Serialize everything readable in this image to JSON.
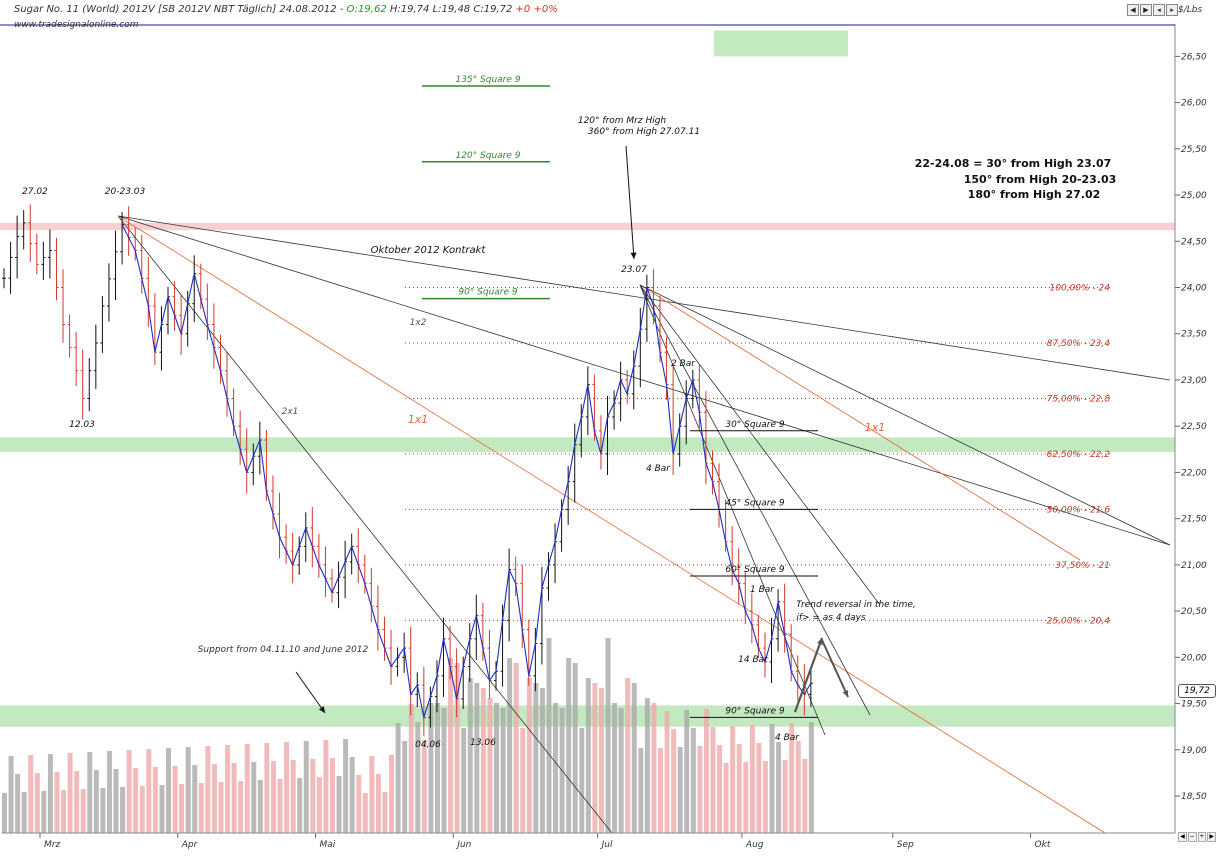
{
  "title": {
    "main": "Sugar No. 11 (World) 2012V [SB 2012V NBT Täglich] 24.08.2012 - ",
    "o": "O:19,62",
    "h": "H:19,74",
    "l": "L:19,48",
    "c": "C:19,72",
    "chg": "+0 +0%"
  },
  "watermark": "www.tradesignalonline.com",
  "unit": "$/Lbs",
  "last_price": "19,72",
  "colors": {
    "up_bar": "#111111",
    "down_bar": "#d23b2b",
    "swing_line": "#1f2ec8",
    "fib_line": "#c0392b",
    "resistance_band": "#f6c9c9",
    "support_band": "#b9e5b5",
    "volume_up": "#a9a9a9",
    "volume_down": "#eeaaaa",
    "square9_line": "#2e8b2e",
    "orange_fan": "#e06a3a"
  },
  "chart_data": {
    "type": "bar",
    "subtype": "ohlc",
    "ylim": [
      18.1,
      26.85
    ],
    "y_ticks": [
      "26,50",
      "26,00",
      "25,50",
      "25,00",
      "24,50",
      "24,00",
      "23,50",
      "23,00",
      "22,50",
      "22,00",
      "21,50",
      "21,00",
      "20,50",
      "20,00",
      "19,50",
      "19,00",
      "18,50"
    ],
    "x_month_labels": [
      {
        "label": "Mrz",
        "bar": 0
      },
      {
        "label": "Apr",
        "bar": 21
      },
      {
        "label": "Mai",
        "bar": 42
      },
      {
        "label": "Jun",
        "bar": 63
      },
      {
        "label": "Jul",
        "bar": 85
      },
      {
        "label": "Aug",
        "bar": 107
      },
      {
        "label": "Sep",
        "bar": 130
      },
      {
        "label": "Okt",
        "bar": 151
      }
    ],
    "key_closes": [
      [
        0,
        24.1
      ],
      [
        2,
        24.55
      ],
      [
        3,
        24.7
      ],
      [
        5,
        24.25
      ],
      [
        7,
        24.4
      ],
      [
        9,
        23.6
      ],
      [
        11,
        23.1
      ],
      [
        12,
        22.8
      ],
      [
        14,
        23.4
      ],
      [
        15,
        23.8
      ],
      [
        18,
        24.68
      ],
      [
        20,
        24.4
      ],
      [
        22,
        23.8
      ],
      [
        23,
        23.3
      ],
      [
        25,
        23.9
      ],
      [
        27,
        23.5
      ],
      [
        29,
        24.15
      ],
      [
        31,
        23.6
      ],
      [
        33,
        23.1
      ],
      [
        35,
        22.5
      ],
      [
        37,
        22.0
      ],
      [
        39,
        22.35
      ],
      [
        40,
        21.8
      ],
      [
        42,
        21.3
      ],
      [
        44,
        21.0
      ],
      [
        46,
        21.4
      ],
      [
        48,
        21.0
      ],
      [
        50,
        20.7
      ],
      [
        53,
        21.2
      ],
      [
        55,
        20.8
      ],
      [
        57,
        20.3
      ],
      [
        59,
        19.9
      ],
      [
        61,
        20.1
      ],
      [
        62,
        19.6
      ],
      [
        63,
        19.7
      ],
      [
        64,
        19.35
      ],
      [
        66,
        19.8
      ],
      [
        67,
        20.2
      ],
      [
        68,
        19.9
      ],
      [
        69,
        19.55
      ],
      [
        70,
        19.9
      ],
      [
        71,
        20.2
      ],
      [
        72,
        20.45
      ],
      [
        73,
        20.1
      ],
      [
        74,
        19.75
      ],
      [
        75,
        19.85
      ],
      [
        76,
        20.4
      ],
      [
        77,
        20.95
      ],
      [
        78,
        20.8
      ],
      [
        79,
        20.3
      ],
      [
        80,
        19.8
      ],
      [
        81,
        20.15
      ],
      [
        82,
        20.75
      ],
      [
        83,
        21.0
      ],
      [
        84,
        21.25
      ],
      [
        85,
        21.6
      ],
      [
        86,
        21.9
      ],
      [
        87,
        22.3
      ],
      [
        88,
        22.6
      ],
      [
        89,
        22.95
      ],
      [
        90,
        22.45
      ],
      [
        91,
        22.2
      ],
      [
        92,
        22.6
      ],
      [
        93,
        22.75
      ],
      [
        94,
        23.0
      ],
      [
        95,
        22.85
      ],
      [
        96,
        23.15
      ],
      [
        97,
        23.55
      ],
      [
        98,
        24.0
      ],
      [
        99,
        23.8
      ],
      [
        100,
        23.3
      ],
      [
        101,
        22.95
      ],
      [
        102,
        22.2
      ],
      [
        103,
        22.5
      ],
      [
        104,
        22.8
      ],
      [
        105,
        23.0
      ],
      [
        106,
        22.65
      ],
      [
        107,
        22.1
      ],
      [
        108,
        21.9
      ],
      [
        109,
        21.6
      ],
      [
        110,
        21.25
      ],
      [
        111,
        20.95
      ],
      [
        112,
        20.8
      ],
      [
        113,
        20.5
      ],
      [
        114,
        20.35
      ],
      [
        115,
        20.1
      ],
      [
        116,
        19.95
      ],
      [
        117,
        20.2
      ],
      [
        118,
        20.6
      ],
      [
        119,
        20.25
      ],
      [
        120,
        19.85
      ],
      [
        121,
        19.7
      ],
      [
        122,
        19.6
      ],
      [
        123,
        19.72
      ]
    ],
    "bands": [
      {
        "type": "resistance",
        "from": 24.62,
        "to": 24.7
      },
      {
        "type": "support",
        "from": 22.22,
        "to": 22.38
      },
      {
        "type": "support",
        "from": 19.25,
        "to": 19.48
      },
      {
        "type": "support",
        "from": 26.5,
        "to": 26.78
      }
    ],
    "fib_levels": [
      {
        "label": "100,00% - 24",
        "y": 24.0
      },
      {
        "label": "87,50% - 23,4",
        "y": 23.4
      },
      {
        "label": "75,00% - 22,8",
        "y": 22.8
      },
      {
        "label": "62,50% - 22,2",
        "y": 22.2
      },
      {
        "label": "50,00% - 21,6",
        "y": 21.6
      },
      {
        "label": "37,50% - 21",
        "y": 21.0
      },
      {
        "label": "25,00% - 20,4",
        "y": 20.4
      }
    ],
    "square9_lines": [
      {
        "label": "135° Square 9",
        "y": 26.18
      },
      {
        "label": "120° Square 9",
        "y": 25.36
      },
      {
        "label": "90° Square 9",
        "y": 23.88
      }
    ],
    "square9_levels_black": [
      {
        "label": "30° Square 9",
        "y": 22.45
      },
      {
        "label": "45° Square 9",
        "y": 21.6
      },
      {
        "label": "60° Square 9",
        "y": 20.88
      },
      {
        "label": "90° Square 9",
        "y": 19.35
      }
    ],
    "annotations": [
      {
        "text": "27.02"
      },
      {
        "text": "20-23.03"
      },
      {
        "text": "12.03"
      },
      {
        "text": "23.07"
      },
      {
        "text": "04.06"
      },
      {
        "text": "13.06"
      },
      {
        "text": "Oktober 2012 Kontrakt"
      },
      {
        "text": "120° from Mrz High"
      },
      {
        "text": "360° from High 27.07.11"
      },
      {
        "text": "22-24.08 = 30° from High 23.07"
      },
      {
        "text": "150° from High 20-23.03"
      },
      {
        "text": "180° from High 27.02"
      },
      {
        "text": "Support from 04.11.10 and June 2012"
      },
      {
        "text": "Trend reversal in the time,"
      },
      {
        "text": "if> = as 4 days"
      },
      {
        "text": "2 Bar"
      },
      {
        "text": "4 Bar"
      },
      {
        "text": "1 Bar"
      },
      {
        "text": "14 Bar"
      },
      {
        "text": "4 Bar"
      },
      {
        "text": "1x1"
      },
      {
        "text": "1x1"
      },
      {
        "text": "1x2"
      },
      {
        "text": "2x1"
      }
    ]
  }
}
